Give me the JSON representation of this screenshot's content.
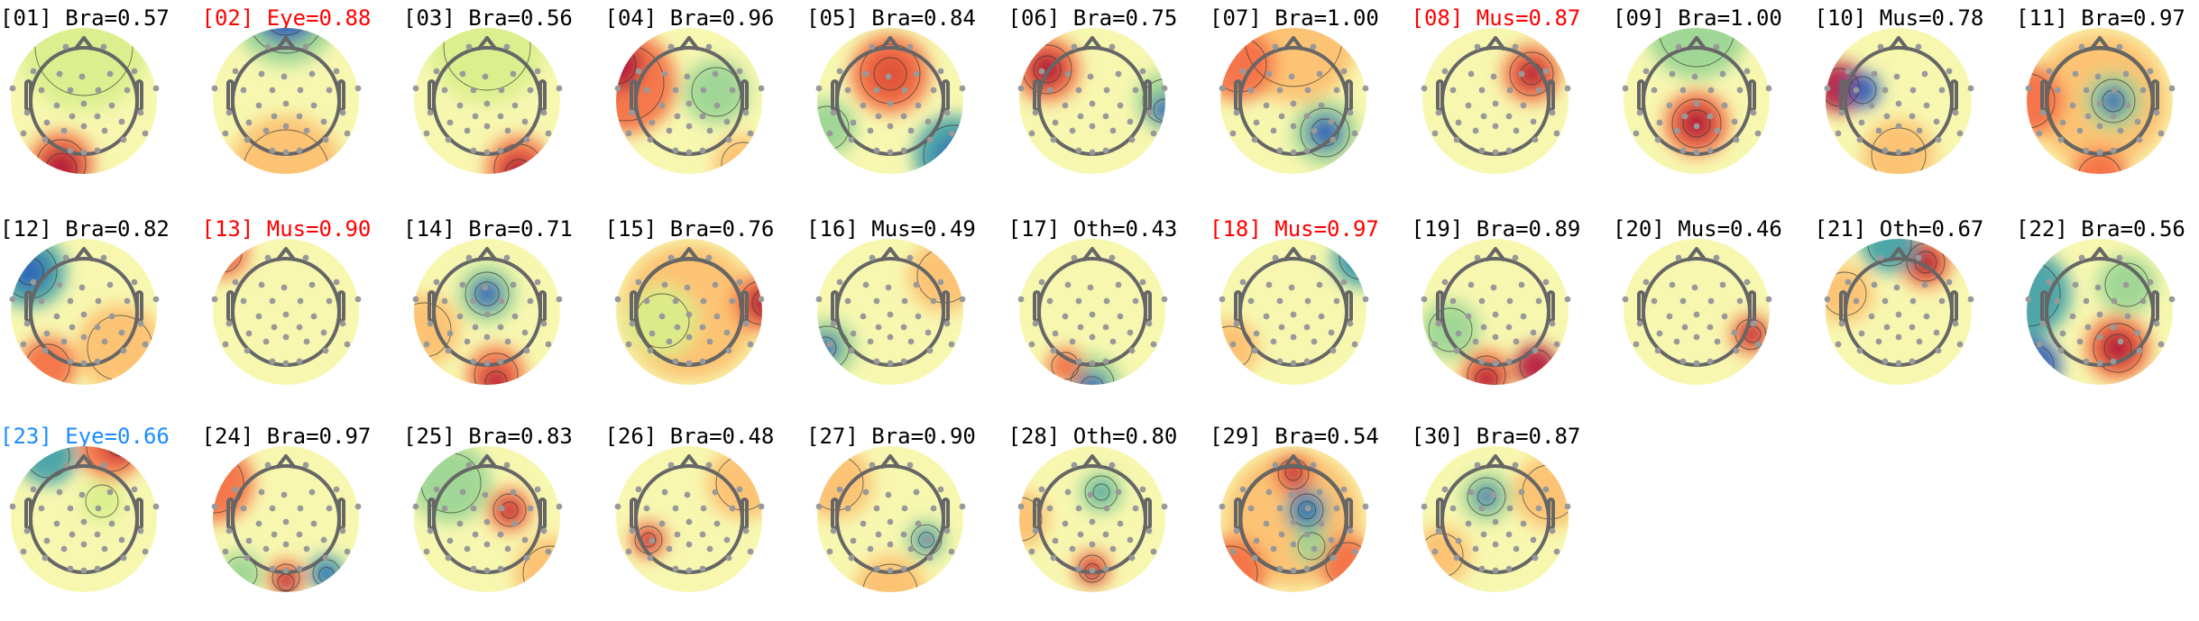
{
  "colors": {
    "default": "#000000",
    "flagged": "#ff0000",
    "highlighted": "#1a8cff"
  },
  "components": [
    {
      "label": "[01] Bra=0.57",
      "state": "default"
    },
    {
      "label": "[02] Eye=0.88",
      "state": "flagged"
    },
    {
      "label": "[03] Bra=0.56",
      "state": "default"
    },
    {
      "label": "[04] Bra=0.96",
      "state": "default"
    },
    {
      "label": "[05] Bra=0.84",
      "state": "default"
    },
    {
      "label": "[06] Bra=0.75",
      "state": "default"
    },
    {
      "label": "[07] Bra=1.00",
      "state": "default"
    },
    {
      "label": "[08] Mus=0.87",
      "state": "flagged"
    },
    {
      "label": "[09] Bra=1.00",
      "state": "default"
    },
    {
      "label": "[10] Mus=0.78",
      "state": "default"
    },
    {
      "label": "[11] Bra=0.97",
      "state": "default"
    },
    {
      "label": "[12] Bra=0.82",
      "state": "default"
    },
    {
      "label": "[13] Mus=0.90",
      "state": "flagged"
    },
    {
      "label": "[14] Bra=0.71",
      "state": "default"
    },
    {
      "label": "[15] Bra=0.76",
      "state": "default"
    },
    {
      "label": "[16] Mus=0.49",
      "state": "default"
    },
    {
      "label": "[17] Oth=0.43",
      "state": "default"
    },
    {
      "label": "[18] Mus=0.97",
      "state": "flagged"
    },
    {
      "label": "[19] Bra=0.89",
      "state": "default"
    },
    {
      "label": "[20] Mus=0.46",
      "state": "default"
    },
    {
      "label": "[21] Oth=0.67",
      "state": "default"
    },
    {
      "label": "[22] Bra=0.56",
      "state": "default"
    },
    {
      "label": "[23] Eye=0.66",
      "state": "highlighted"
    },
    {
      "label": "[24] Bra=0.97",
      "state": "default"
    },
    {
      "label": "[25] Bra=0.83",
      "state": "default"
    },
    {
      "label": "[26] Bra=0.48",
      "state": "default"
    },
    {
      "label": "[27] Bra=0.90",
      "state": "default"
    },
    {
      "label": "[28] Oth=0.80",
      "state": "default"
    },
    {
      "label": "[29] Bra=0.54",
      "state": "default"
    },
    {
      "label": "[30] Bra=0.87",
      "state": "default"
    }
  ]
}
